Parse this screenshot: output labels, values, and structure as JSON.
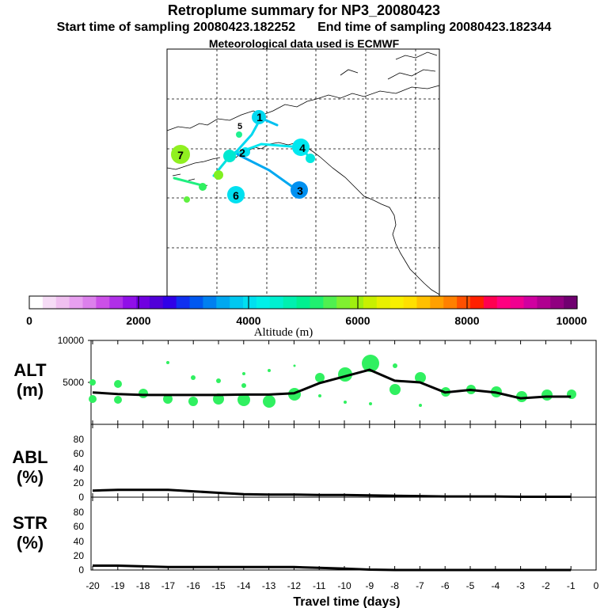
{
  "header": {
    "title": "Retroplume summary for NP3_20080423",
    "start_label": "Start time of sampling 20080423.182252",
    "end_label": "End time of sampling 20080423.182344",
    "met_label": "Meteorological data used is ECMWF"
  },
  "colorbar": {
    "label": "Altitude (m)",
    "ticks": [
      "0",
      "2000",
      "4000",
      "6000",
      "8000",
      "10000"
    ],
    "colors": [
      "#ffffff",
      "#f6dcf6",
      "#f0c0f0",
      "#e8a0f0",
      "#dc80ec",
      "#cc50e8",
      "#b030e8",
      "#9010e8",
      "#7000e0",
      "#5000d8",
      "#3000e8",
      "#1030f0",
      "#0058f0",
      "#0080f0",
      "#00a8f0",
      "#00c8f0",
      "#00e0f0",
      "#00f0e8",
      "#00f0d0",
      "#00f0b0",
      "#00f090",
      "#20f070",
      "#50f050",
      "#80f030",
      "#a0f010",
      "#c8f000",
      "#e8f000",
      "#f8f000",
      "#ffe000",
      "#ffc000",
      "#ffa000",
      "#ff8000",
      "#ff5000",
      "#ff2000",
      "#ff0050",
      "#ff0080",
      "#f00090",
      "#d000a0",
      "#b00090",
      "#900080",
      "#700070"
    ]
  },
  "map_labels": [
    "1",
    "2",
    "3",
    "4",
    "5",
    "6",
    "7"
  ],
  "chart_data": [
    {
      "type": "line",
      "name": "ALT",
      "ylabel_line1": "ALT",
      "ylabel_line2": "(m)",
      "ylim": [
        0,
        10000
      ],
      "yticks": [
        "10000",
        "5000"
      ],
      "x": [
        -20,
        -19,
        -18,
        -17,
        -16,
        -15,
        -14,
        -13,
        -12,
        -11,
        -10,
        -9,
        -8,
        -7,
        -6,
        -5,
        -4,
        -3,
        -2,
        -1
      ],
      "values": [
        3800,
        3600,
        3500,
        3500,
        3500,
        3500,
        3550,
        3550,
        3700,
        4900,
        5700,
        6500,
        5200,
        5000,
        3800,
        4100,
        3800,
        3100,
        3300,
        3300
      ]
    },
    {
      "type": "line",
      "name": "ABL",
      "ylabel_line1": "ABL",
      "ylabel_line2": "(%)",
      "ylim": [
        0,
        100
      ],
      "yticks": [
        "80",
        "60",
        "40",
        "20",
        "0"
      ],
      "x": [
        -20,
        -19,
        -18,
        -17,
        -16,
        -15,
        -14,
        -13,
        -12,
        -11,
        -10,
        -9,
        -8,
        -7,
        -6,
        -5,
        -4,
        -3,
        -2,
        -1
      ],
      "values": [
        9,
        10,
        10,
        10,
        8,
        6,
        4,
        3.5,
        3.5,
        3,
        3,
        2.5,
        2,
        1.5,
        1,
        1,
        1,
        0.5,
        0.5,
        0.5
      ]
    },
    {
      "type": "line",
      "name": "STR",
      "ylabel_line1": "STR",
      "ylabel_line2": "(%)",
      "ylim": [
        0,
        100
      ],
      "yticks": [
        "80",
        "60",
        "40",
        "20",
        "0"
      ],
      "x": [
        -20,
        -19,
        -18,
        -17,
        -16,
        -15,
        -14,
        -13,
        -12,
        -11,
        -10,
        -9,
        -8,
        -7,
        -6,
        -5,
        -4,
        -3,
        -2,
        -1
      ],
      "values": [
        6,
        6,
        5,
        4,
        4,
        4,
        4,
        4,
        4,
        3,
        2,
        0.5,
        0,
        0,
        0,
        0,
        0,
        0,
        0,
        0
      ]
    }
  ],
  "xaxis": {
    "label": "Travel time (days)",
    "ticks": [
      "-20",
      "-19",
      "-18",
      "-17",
      "-16",
      "-15",
      "-14",
      "-13",
      "-12",
      "-11",
      "-10",
      "-9",
      "-8",
      "-7",
      "-6",
      "-5",
      "-4",
      "-3",
      "-2",
      "-1",
      "0"
    ]
  }
}
